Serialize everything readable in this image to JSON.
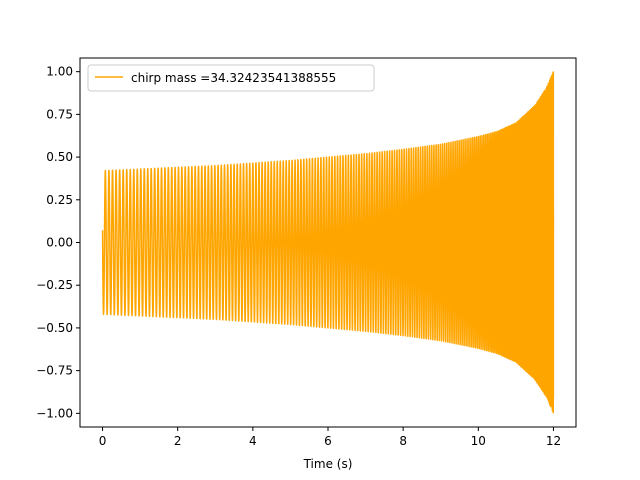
{
  "chart_data": {
    "type": "line",
    "title": "",
    "xlabel": "Time (s)",
    "ylabel": "",
    "xlim": [
      -0.6,
      12.6
    ],
    "ylim": [
      -1.08,
      1.08
    ],
    "x_ticks": [
      0,
      2,
      4,
      6,
      8,
      10,
      12
    ],
    "x_tick_labels": [
      "0",
      "2",
      "4",
      "6",
      "8",
      "10",
      "12"
    ],
    "y_ticks": [
      -1.0,
      -0.75,
      -0.5,
      -0.25,
      0.0,
      0.25,
      0.5,
      0.75,
      1.0
    ],
    "y_tick_labels": [
      "−1.00",
      "−0.75",
      "−0.50",
      "−0.25",
      "0.00",
      "0.25",
      "0.50",
      "0.75",
      "1.00"
    ],
    "grid": false,
    "legend_position": "upper-left",
    "series": [
      {
        "name": "chirp mass =34.32423541388555",
        "color": "#FFA500",
        "t_start": 0,
        "t_end": 12,
        "envelope_x": [
          0,
          1,
          2,
          3,
          4,
          5,
          6,
          7,
          8,
          9,
          10,
          10.5,
          11,
          11.5,
          11.8,
          12
        ],
        "envelope_y": [
          0.42,
          0.43,
          0.44,
          0.45,
          0.465,
          0.48,
          0.5,
          0.52,
          0.545,
          0.575,
          0.62,
          0.65,
          0.7,
          0.8,
          0.9,
          1.0
        ],
        "cycles": 200
      }
    ]
  }
}
